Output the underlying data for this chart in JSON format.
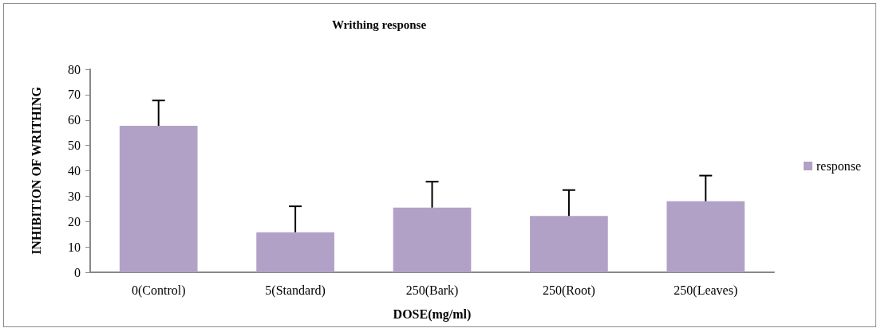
{
  "chart_data": {
    "type": "bar",
    "title": "Writhing response",
    "xlabel": "DOSE(mg/ml)",
    "ylabel": "INHIBITION OF WRITHING",
    "categories": [
      "0(Control)",
      "5(Standard)",
      "250(Bark)",
      "250(Root)",
      "250(Leaves)"
    ],
    "series": [
      {
        "name": "response",
        "color": "#b2a1c7",
        "values": [
          57.7,
          15.8,
          25.5,
          22.2,
          28.0
        ],
        "errors": [
          [
            57.7,
            67.7
          ],
          [
            15.8,
            26.0
          ],
          [
            25.5,
            35.7
          ],
          [
            22.2,
            32.4
          ],
          [
            28.0,
            38.1
          ]
        ]
      }
    ],
    "ylim": [
      0,
      80
    ],
    "yticks": [
      0,
      10,
      20,
      30,
      40,
      50,
      60,
      70,
      80
    ],
    "grid": false,
    "legend": "right"
  }
}
